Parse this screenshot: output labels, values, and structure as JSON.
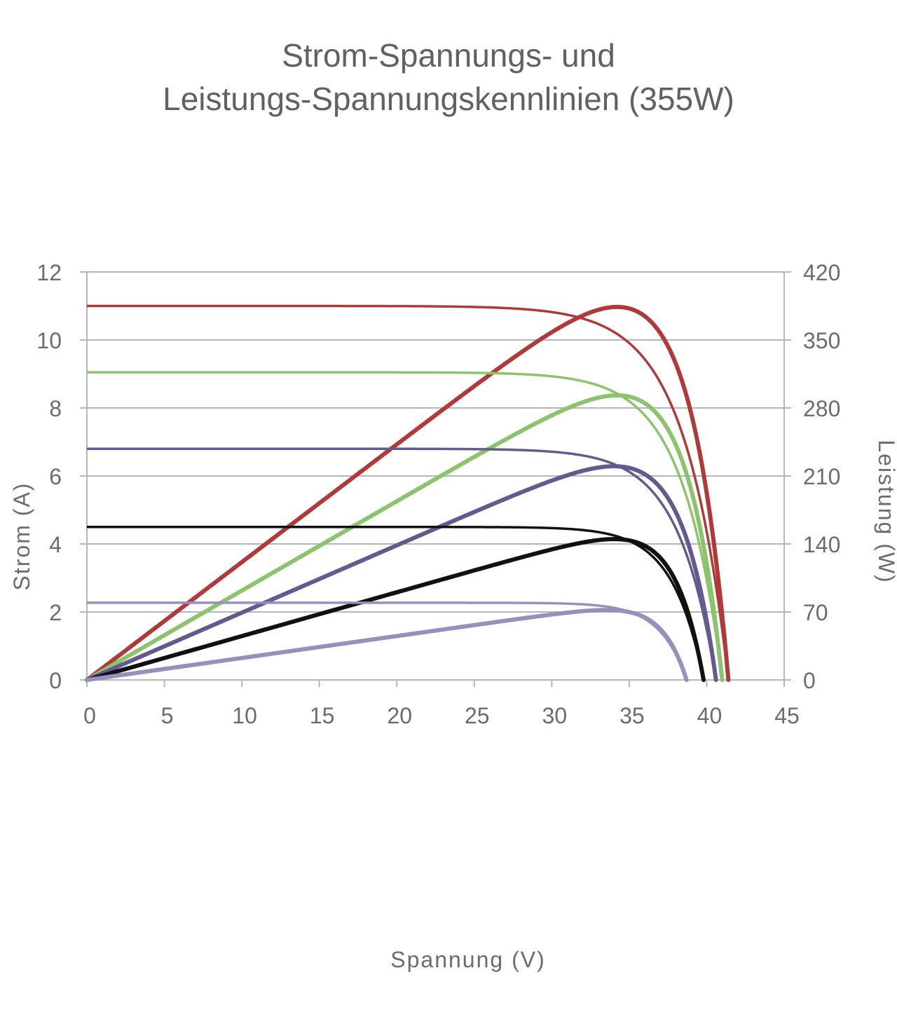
{
  "chart_data": {
    "type": "line",
    "title_lines": [
      "Strom-Spannungs- und",
      "Leistungs-Spannungskennlinien (355W)"
    ],
    "xlabel": "Spannung (V)",
    "ylabel": "Strom (A)",
    "y2label": "Leistung (W)",
    "xlim": [
      0,
      45
    ],
    "ylim": [
      0,
      12
    ],
    "y2lim": [
      0,
      420
    ],
    "x_ticks": [
      "0",
      "5",
      "10",
      "15",
      "20",
      "25",
      "30",
      "35",
      "40",
      "45"
    ],
    "y_ticks": [
      "0",
      "2",
      "4",
      "6",
      "8",
      "10",
      "12"
    ],
    "y2_ticks": [
      "0",
      "70",
      "140",
      "210",
      "280",
      "350",
      "420"
    ],
    "grid": "horizontal",
    "curves": [
      {
        "color": "#b03a3a",
        "isc": 11.0,
        "voc": 41.4,
        "vmp": 34.2,
        "pmax": 384
      },
      {
        "color": "#8cc46e",
        "isc": 9.05,
        "voc": 41.0,
        "vmp": 34.2,
        "pmax": 293
      },
      {
        "color": "#655a8f",
        "isc": 6.8,
        "voc": 40.6,
        "vmp": 34.0,
        "pmax": 220
      },
      {
        "color": "#111111",
        "isc": 4.5,
        "voc": 39.8,
        "vmp": 34.0,
        "pmax": 145
      },
      {
        "color": "#9690bc",
        "isc": 2.27,
        "voc": 38.7,
        "vmp": 33.5,
        "pmax": 72
      }
    ]
  }
}
